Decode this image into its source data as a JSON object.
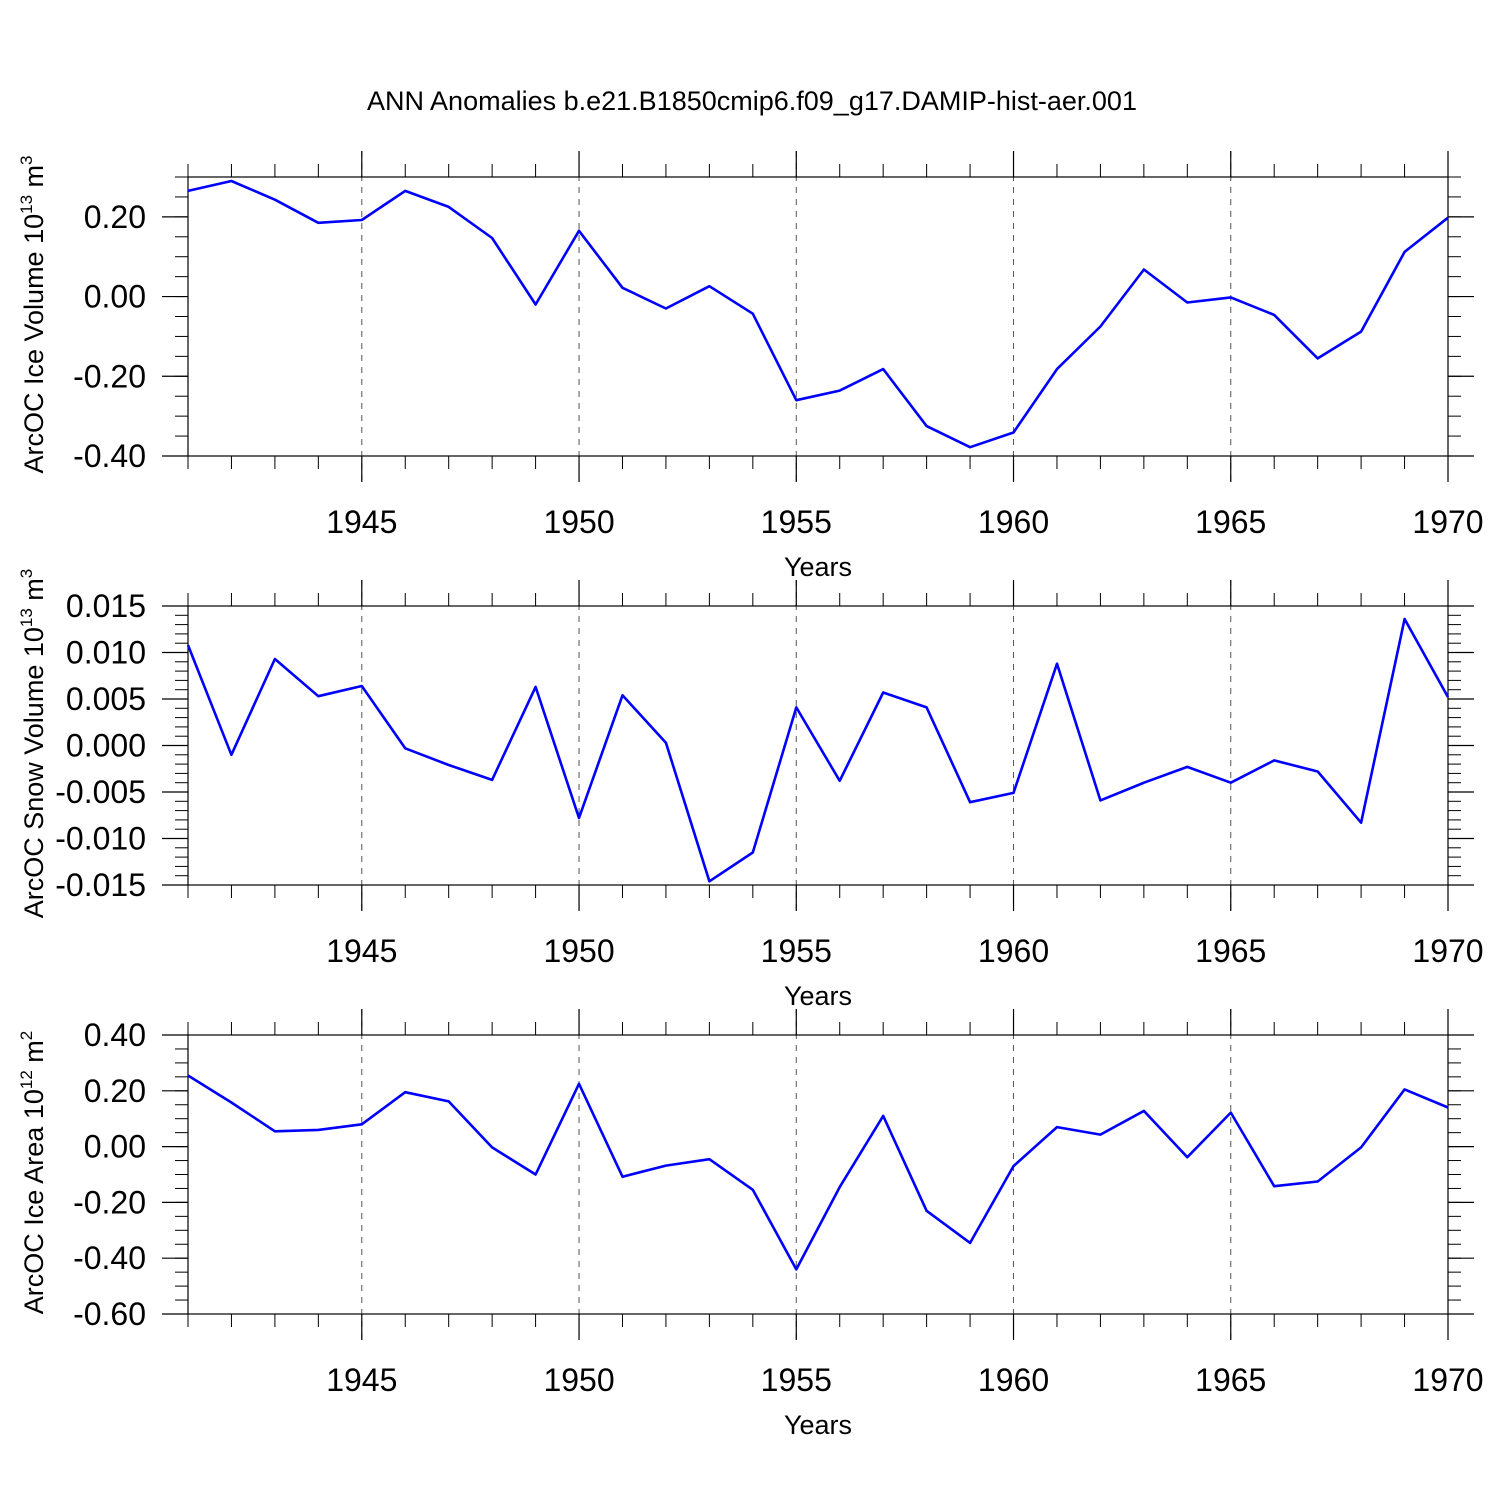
{
  "figure_title": "ANN Anomalies b.e21.B1850cmip6.f09_g17.DAMIP-hist-aer.001",
  "line_color": "#0000ff",
  "chart_data": [
    {
      "type": "line",
      "xlabel": "Years",
      "ylabel": "ArcOC Ice Volume 10",
      "ylabel_exp": "13",
      "ylabel_unit": "m",
      "ylabel_unit_exp": "3",
      "xlim": [
        1941,
        1970
      ],
      "ylim": [
        -0.4,
        0.3
      ],
      "x_ticks": [
        1945,
        1950,
        1955,
        1960,
        1965,
        1970
      ],
      "x_tick_labels": [
        "1945",
        "1950",
        "1955",
        "1960",
        "1965",
        "1970"
      ],
      "y_ticks": [
        -0.4,
        -0.2,
        0.0,
        0.2
      ],
      "y_tick_labels": [
        "-0.40",
        "-0.20",
        "0.00",
        "0.20"
      ],
      "y_minor_step": 0.05,
      "grid_x": [
        1945,
        1950,
        1955,
        1960,
        1965
      ],
      "series": [
        {
          "name": "ice_volume",
          "x": [
            1941,
            1942,
            1943,
            1944,
            1945,
            1946,
            1947,
            1948,
            1949,
            1950,
            1951,
            1952,
            1953,
            1954,
            1955,
            1956,
            1957,
            1958,
            1959,
            1960,
            1961,
            1962,
            1963,
            1964,
            1965,
            1966,
            1967,
            1968,
            1969,
            1970
          ],
          "values": [
            0.265,
            0.29,
            0.243,
            0.185,
            0.192,
            0.265,
            0.225,
            0.147,
            -0.02,
            0.165,
            0.022,
            -0.03,
            0.026,
            -0.043,
            -0.26,
            -0.236,
            -0.182,
            -0.325,
            -0.378,
            -0.341,
            -0.182,
            -0.075,
            0.068,
            -0.015,
            -0.002,
            -0.046,
            -0.155,
            -0.088,
            0.112,
            0.198
          ]
        }
      ]
    },
    {
      "type": "line",
      "xlabel": "Years",
      "ylabel": "ArcOC Snow Volume 10",
      "ylabel_exp": "13",
      "ylabel_unit": "m",
      "ylabel_unit_exp": "3",
      "xlim": [
        1941,
        1970
      ],
      "ylim": [
        -0.015,
        0.015
      ],
      "x_ticks": [
        1945,
        1950,
        1955,
        1960,
        1965,
        1970
      ],
      "x_tick_labels": [
        "1945",
        "1950",
        "1955",
        "1960",
        "1965",
        "1970"
      ],
      "y_ticks": [
        -0.015,
        -0.01,
        -0.005,
        0.0,
        0.005,
        0.01,
        0.015
      ],
      "y_tick_labels": [
        "-0.015",
        "-0.010",
        "-0.005",
        "0.000",
        "0.005",
        "0.010",
        "0.015"
      ],
      "y_minor_step": 0.001,
      "grid_x": [
        1945,
        1950,
        1955,
        1960,
        1965
      ],
      "series": [
        {
          "name": "snow_volume",
          "x": [
            1941,
            1942,
            1943,
            1944,
            1945,
            1946,
            1947,
            1948,
            1949,
            1950,
            1951,
            1952,
            1953,
            1954,
            1955,
            1956,
            1957,
            1958,
            1959,
            1960,
            1961,
            1962,
            1963,
            1964,
            1965,
            1966,
            1967,
            1968,
            1969,
            1970
          ],
          "values": [
            0.0108,
            -0.001,
            0.0093,
            0.0053,
            0.0064,
            -0.0003,
            -0.0021,
            -0.0037,
            0.0063,
            -0.0078,
            0.0054,
            0.0003,
            -0.0146,
            -0.0115,
            0.0041,
            -0.0038,
            0.0057,
            0.0041,
            -0.0061,
            -0.0051,
            0.0088,
            -0.0059,
            -0.004,
            -0.0023,
            -0.004,
            -0.0016,
            -0.0028,
            -0.0083,
            0.0136,
            0.0052
          ]
        }
      ]
    },
    {
      "type": "line",
      "xlabel": "Years",
      "ylabel": "ArcOC Ice Area 10",
      "ylabel_exp": "12",
      "ylabel_unit": "m",
      "ylabel_unit_exp": "2",
      "xlim": [
        1941,
        1970
      ],
      "ylim": [
        -0.6,
        0.4
      ],
      "x_ticks": [
        1945,
        1950,
        1955,
        1960,
        1965,
        1970
      ],
      "x_tick_labels": [
        "1945",
        "1950",
        "1955",
        "1960",
        "1965",
        "1970"
      ],
      "y_ticks": [
        -0.6,
        -0.4,
        -0.2,
        0.0,
        0.2,
        0.4
      ],
      "y_tick_labels": [
        "-0.60",
        "-0.40",
        "-0.20",
        "0.00",
        "0.20",
        "0.40"
      ],
      "y_minor_step": 0.05,
      "grid_x": [
        1945,
        1950,
        1955,
        1960,
        1965
      ],
      "series": [
        {
          "name": "ice_area",
          "x": [
            1941,
            1942,
            1943,
            1944,
            1945,
            1946,
            1947,
            1948,
            1949,
            1950,
            1951,
            1952,
            1953,
            1954,
            1955,
            1956,
            1957,
            1958,
            1959,
            1960,
            1961,
            1962,
            1963,
            1964,
            1965,
            1966,
            1967,
            1968,
            1969,
            1970
          ],
          "values": [
            0.255,
            0.158,
            0.055,
            0.06,
            0.08,
            0.195,
            0.162,
            -0.003,
            -0.1,
            0.225,
            -0.108,
            -0.068,
            -0.045,
            -0.155,
            -0.44,
            -0.145,
            0.11,
            -0.23,
            -0.345,
            -0.07,
            0.07,
            0.043,
            0.128,
            -0.038,
            0.122,
            -0.142,
            -0.125,
            -0.003,
            0.205,
            0.14
          ]
        }
      ]
    }
  ]
}
